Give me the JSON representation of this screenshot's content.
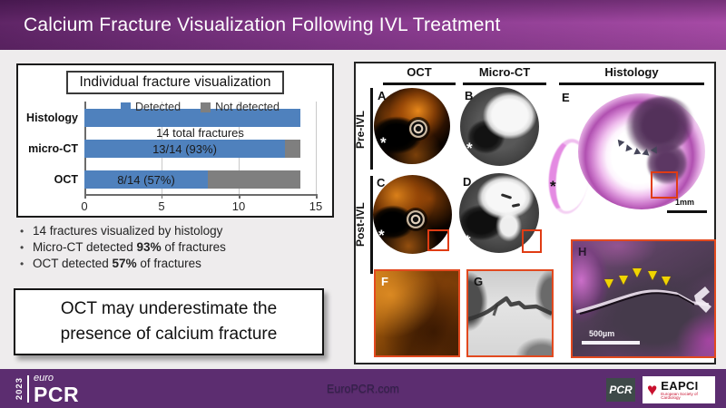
{
  "header": {
    "title": "Calcium Fracture Visualization Following IVL Treatment"
  },
  "chart_data": {
    "type": "bar",
    "orientation": "horizontal",
    "stacked": true,
    "title": "Individual fracture visualization",
    "categories": [
      "Histology",
      "micro-CT",
      "OCT"
    ],
    "series": [
      {
        "name": "Detected",
        "color": "#4f81bd",
        "values": [
          14,
          13,
          8
        ]
      },
      {
        "name": "Not detected",
        "color": "#7f7f7f",
        "values": [
          0,
          1,
          6
        ]
      }
    ],
    "bar_labels": [
      "14 total fractures",
      "13/14 (93%)",
      "8/14 (57%)"
    ],
    "xlim": [
      0,
      15
    ],
    "xticks": [
      0,
      5,
      10,
      15
    ],
    "grid": true,
    "legend_position": "top-inside"
  },
  "bullets": [
    {
      "pre": "14 fractures visualized by histology",
      "bold": "",
      "post": ""
    },
    {
      "pre": "Micro-CT detected ",
      "bold": "93%",
      "post": " of fractures"
    },
    {
      "pre": "OCT detected ",
      "bold": "57%",
      "post": " of fractures"
    }
  ],
  "conclusion": "OCT may underestimate the presence of calcium fracture",
  "figure": {
    "columns": [
      "OCT",
      "Micro-CT",
      "Histology"
    ],
    "rows": [
      "Pre-IVL",
      "Post-IVL"
    ],
    "panel_labels": [
      "A",
      "B",
      "C",
      "D",
      "E",
      "F",
      "G",
      "H"
    ],
    "asterisk": "*",
    "scale_bar_e": "1mm",
    "scale_bar_h": "500µm"
  },
  "footer": {
    "year": "2023",
    "brand_top": "euro",
    "brand_main": "PCR",
    "website": "EuroPCR.com",
    "pcr_logo": "PCR",
    "eapci_name": "EAPCI",
    "eapci_subtitle": "European Society of Cardiology"
  },
  "colors": {
    "header_purple": "#83388a",
    "footer_purple": "#5c2d70",
    "bar_blue": "#4f81bd",
    "bar_gray": "#7f7f7f",
    "annotation_red": "#e03c14",
    "arrowhead_yellow": "#f0d400"
  }
}
